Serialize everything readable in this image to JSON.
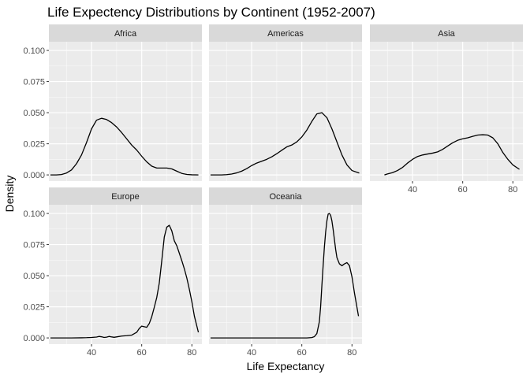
{
  "chart_data": {
    "type": "line",
    "title": "Life Expectency Distributions by Continent (1952-2007)",
    "xlabel": "Life Expectancy",
    "ylabel": "Density",
    "facet_layout": "3 columns x 2 rows",
    "xlim": [
      23,
      84
    ],
    "ylim": [
      -0.005,
      0.107
    ],
    "x_ticks": [
      40,
      60,
      80
    ],
    "x_tick_labels": [
      "40",
      "60",
      "80"
    ],
    "y_ticks": [
      0,
      0.025,
      0.05,
      0.075,
      0.1
    ],
    "y_tick_labels": [
      "0.000",
      "0.025",
      "0.050",
      "0.075",
      "0.100"
    ],
    "grid": true,
    "colors": {
      "panel_background": "#ebebeb",
      "strip_background": "#d9d9d9",
      "grid": "#ffffff",
      "line": "#000000"
    },
    "series": [
      {
        "name": "Africa",
        "x": [
          23.6,
          26,
          28,
          30,
          32,
          34,
          36,
          38,
          40,
          42,
          44,
          46,
          48,
          50,
          52,
          54,
          56,
          58,
          60,
          62,
          64,
          66,
          68,
          70,
          72,
          74,
          76,
          78,
          80,
          82.6
        ],
        "y": [
          0.0,
          0.0,
          0.0003,
          0.0015,
          0.004,
          0.009,
          0.016,
          0.026,
          0.037,
          0.044,
          0.0455,
          0.0445,
          0.042,
          0.0385,
          0.034,
          0.029,
          0.024,
          0.02,
          0.015,
          0.0105,
          0.007,
          0.0055,
          0.0055,
          0.0055,
          0.0048,
          0.003,
          0.0012,
          0.0004,
          0.0001,
          0.0
        ]
      },
      {
        "name": "Americas",
        "x": [
          23.6,
          26,
          28,
          30,
          32,
          34,
          36,
          38,
          40,
          42,
          44,
          46,
          48,
          50,
          52,
          54,
          56,
          58,
          60,
          62,
          64,
          66,
          68,
          70,
          72,
          74,
          76,
          78,
          80,
          82.9
        ],
        "y": [
          0.0,
          0.0,
          0.0,
          0.0002,
          0.0007,
          0.0016,
          0.003,
          0.005,
          0.0075,
          0.0095,
          0.011,
          0.0125,
          0.0145,
          0.017,
          0.0198,
          0.0225,
          0.024,
          0.0265,
          0.0305,
          0.036,
          0.043,
          0.049,
          0.05,
          0.046,
          0.037,
          0.0265,
          0.016,
          0.008,
          0.0035,
          0.0015
        ]
      },
      {
        "name": "Asia",
        "x": [
          28.8,
          30,
          32,
          34,
          36,
          38,
          40,
          42,
          44,
          46,
          48,
          50,
          52,
          54,
          56,
          58,
          60,
          62,
          64,
          66,
          68,
          70,
          72,
          74,
          76,
          78,
          80,
          82.6
        ],
        "y": [
          0.0,
          0.0008,
          0.0018,
          0.0035,
          0.006,
          0.0095,
          0.0125,
          0.0148,
          0.016,
          0.0168,
          0.0175,
          0.0185,
          0.0205,
          0.0232,
          0.0258,
          0.0278,
          0.029,
          0.0298,
          0.031,
          0.032,
          0.0323,
          0.032,
          0.0298,
          0.025,
          0.018,
          0.0125,
          0.008,
          0.0045
        ]
      },
      {
        "name": "Europe",
        "x": [
          23.6,
          28,
          32,
          36,
          38,
          40,
          42,
          43,
          44,
          45,
          46,
          47,
          48,
          49,
          50,
          52,
          54,
          56,
          58,
          59,
          60,
          61,
          62,
          63,
          64,
          65,
          66,
          67,
          68,
          69,
          70,
          71,
          72,
          73,
          74,
          75,
          76,
          77,
          78,
          79,
          80,
          81,
          82.6
        ],
        "y": [
          0.0,
          0.0,
          0.0,
          0.0001,
          0.0002,
          0.0004,
          0.0007,
          0.0012,
          0.0009,
          0.0004,
          0.0006,
          0.0012,
          0.0008,
          0.0005,
          0.0008,
          0.0015,
          0.0018,
          0.0022,
          0.0045,
          0.0075,
          0.0095,
          0.009,
          0.0085,
          0.0115,
          0.017,
          0.0245,
          0.0325,
          0.044,
          0.062,
          0.081,
          0.089,
          0.0905,
          0.086,
          0.078,
          0.074,
          0.068,
          0.062,
          0.0555,
          0.048,
          0.039,
          0.029,
          0.0175,
          0.0045
        ]
      },
      {
        "name": "Oceania",
        "x": [
          23.6,
          40,
          50,
          60,
          62,
          64,
          65,
          66,
          67,
          67.5,
          68,
          68.5,
          69,
          69.5,
          70,
          70.5,
          71,
          71.5,
          72,
          72.5,
          73,
          73.5,
          74,
          75,
          76,
          77,
          78,
          79,
          80,
          81,
          82.6
        ],
        "y": [
          0.0,
          0.0,
          0.0,
          0.0,
          0.0,
          0.0003,
          0.001,
          0.0035,
          0.013,
          0.025,
          0.042,
          0.058,
          0.073,
          0.085,
          0.094,
          0.0995,
          0.1,
          0.0985,
          0.094,
          0.087,
          0.079,
          0.071,
          0.0645,
          0.0595,
          0.058,
          0.0595,
          0.0605,
          0.058,
          0.049,
          0.036,
          0.0175
        ]
      }
    ]
  }
}
